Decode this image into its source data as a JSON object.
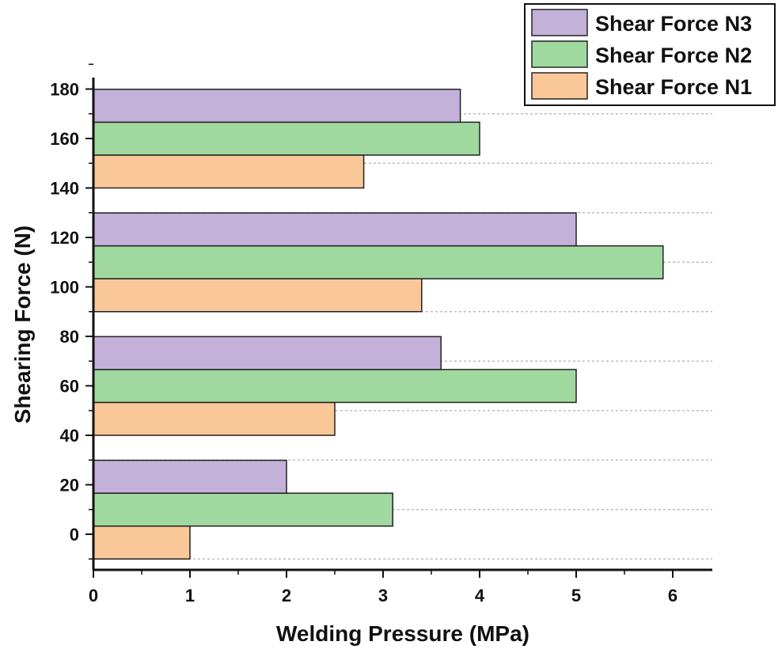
{
  "chart_data": {
    "type": "bar",
    "orientation": "horizontal",
    "xlabel": "Welding Pressure (MPa)",
    "ylabel": "Shearing Force (N)",
    "xlim": [
      0,
      6.4
    ],
    "ylim": [
      -10,
      185
    ],
    "x_ticks": [
      "0",
      "1",
      "2",
      "3",
      "4",
      "5",
      "6"
    ],
    "y_ticks": [
      "0",
      "20",
      "40",
      "60",
      "80",
      "100",
      "120",
      "140",
      "160",
      "180"
    ],
    "grid": "dotted horizontal",
    "legend_position": "top-right",
    "groups": 4,
    "series": [
      {
        "name": "Shear Force N1",
        "color": "#fac898",
        "values": [
          1.0,
          2.5,
          3.4,
          2.8
        ]
      },
      {
        "name": "Shear Force N2",
        "color": "#9fd99f",
        "values": [
          3.1,
          5.0,
          5.9,
          4.0
        ]
      },
      {
        "name": "Shear Force N3",
        "color": "#c3b1d9",
        "values": [
          2.0,
          3.6,
          5.0,
          3.8
        ]
      }
    ],
    "legend_order": [
      "Shear Force N3",
      "Shear Force N2",
      "Shear Force N1"
    ]
  }
}
